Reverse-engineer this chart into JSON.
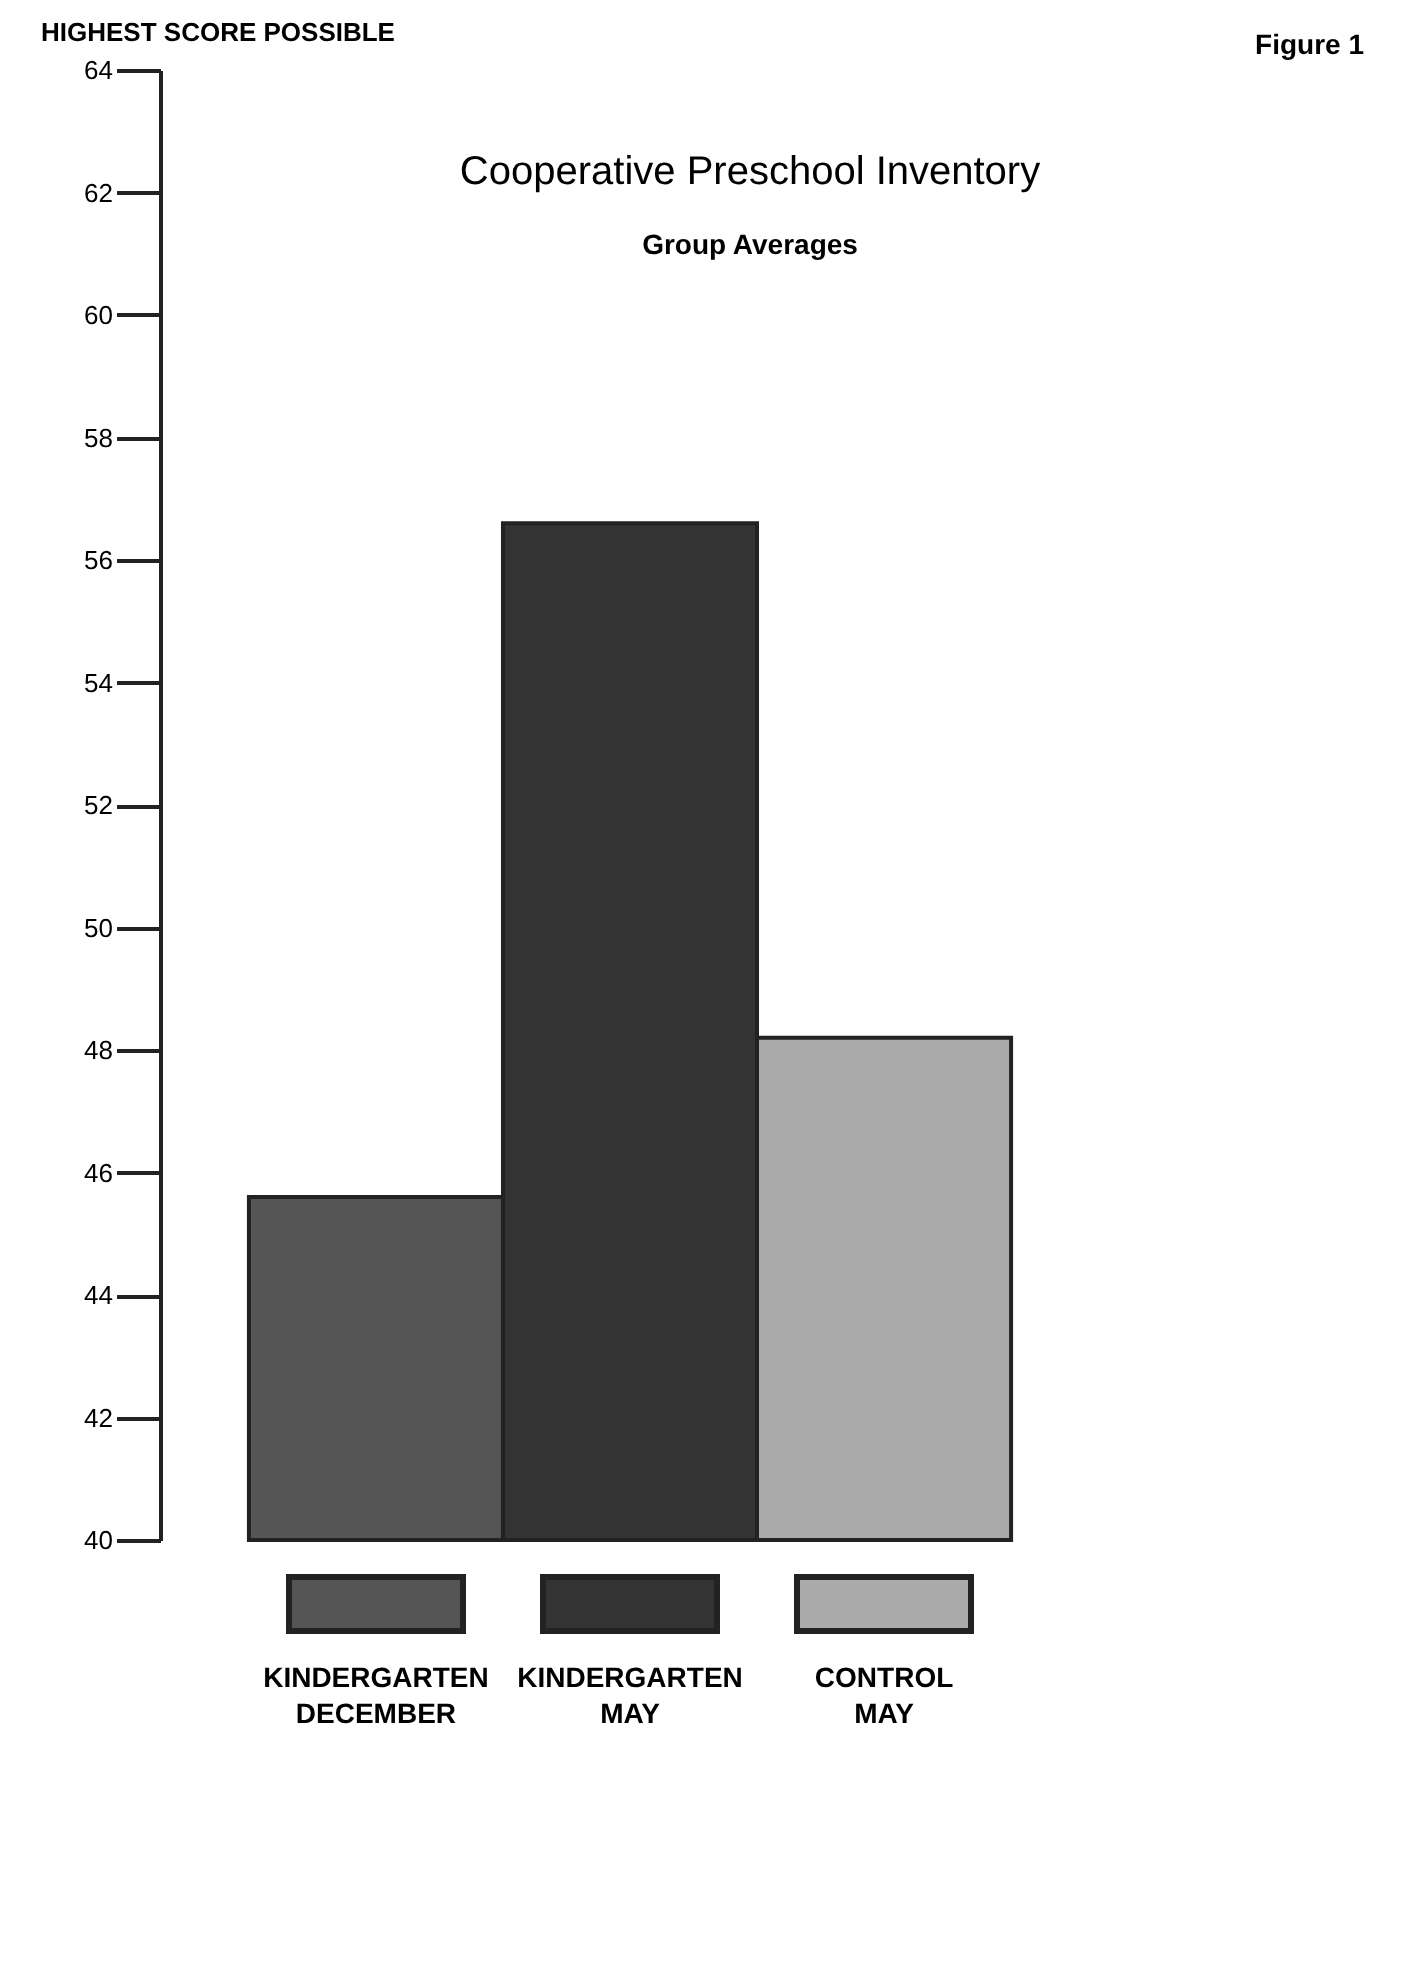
{
  "chart_data": {
    "type": "bar",
    "title": "Cooperative Preschool Inventory",
    "subtitle": "Group Averages",
    "ylabel": "HIGHEST SCORE POSSIBLE",
    "annotations": [
      "Figure 1"
    ],
    "categories": [
      "KINDERGARTEN DECEMBER",
      "KINDERGARTEN MAY",
      "CONTROL MAY"
    ],
    "values": [
      45.6,
      56.6,
      48.2
    ],
    "colors": [
      "#555555",
      "#333333",
      "#aaaaaa"
    ],
    "ylim": [
      40,
      64
    ],
    "yticks": [
      40,
      42,
      44,
      46,
      48,
      50,
      52,
      54,
      56,
      58,
      60,
      62,
      64
    ],
    "grid": false
  }
}
